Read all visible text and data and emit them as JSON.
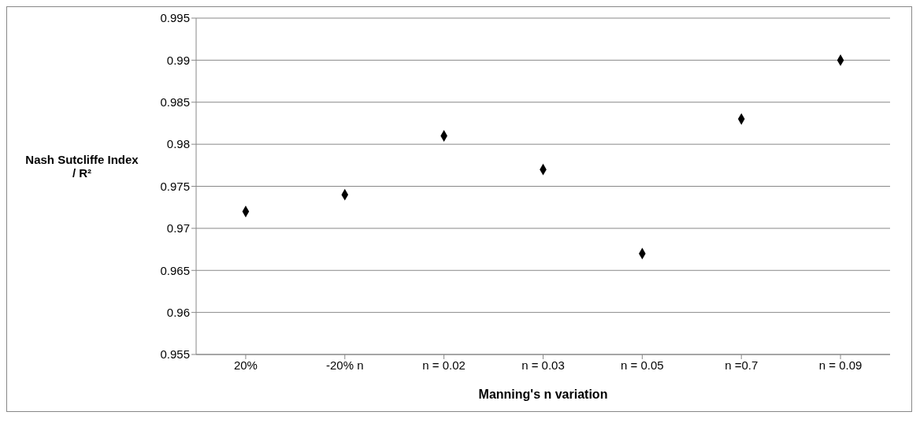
{
  "chart_data": {
    "type": "scatter",
    "xlabel": "Manning's n variation",
    "ylabel": "Nash Sutcliffe Index / R²",
    "categories": [
      "20%",
      "-20% n",
      "n = 0.02",
      "n = 0.03",
      "n = 0.05",
      "n =0.7",
      "n = 0.09"
    ],
    "series": [
      {
        "color": "#000000",
        "values": [
          0.972,
          0.974,
          0.981,
          0.977,
          0.967,
          0.983,
          0.99
        ]
      }
    ],
    "ylim": [
      0.955,
      0.995
    ],
    "yticks": [
      0.955,
      0.96,
      0.965,
      0.97,
      0.975,
      0.98,
      0.985,
      0.99,
      0.995
    ],
    "grid": "y",
    "marker": "diamond"
  }
}
